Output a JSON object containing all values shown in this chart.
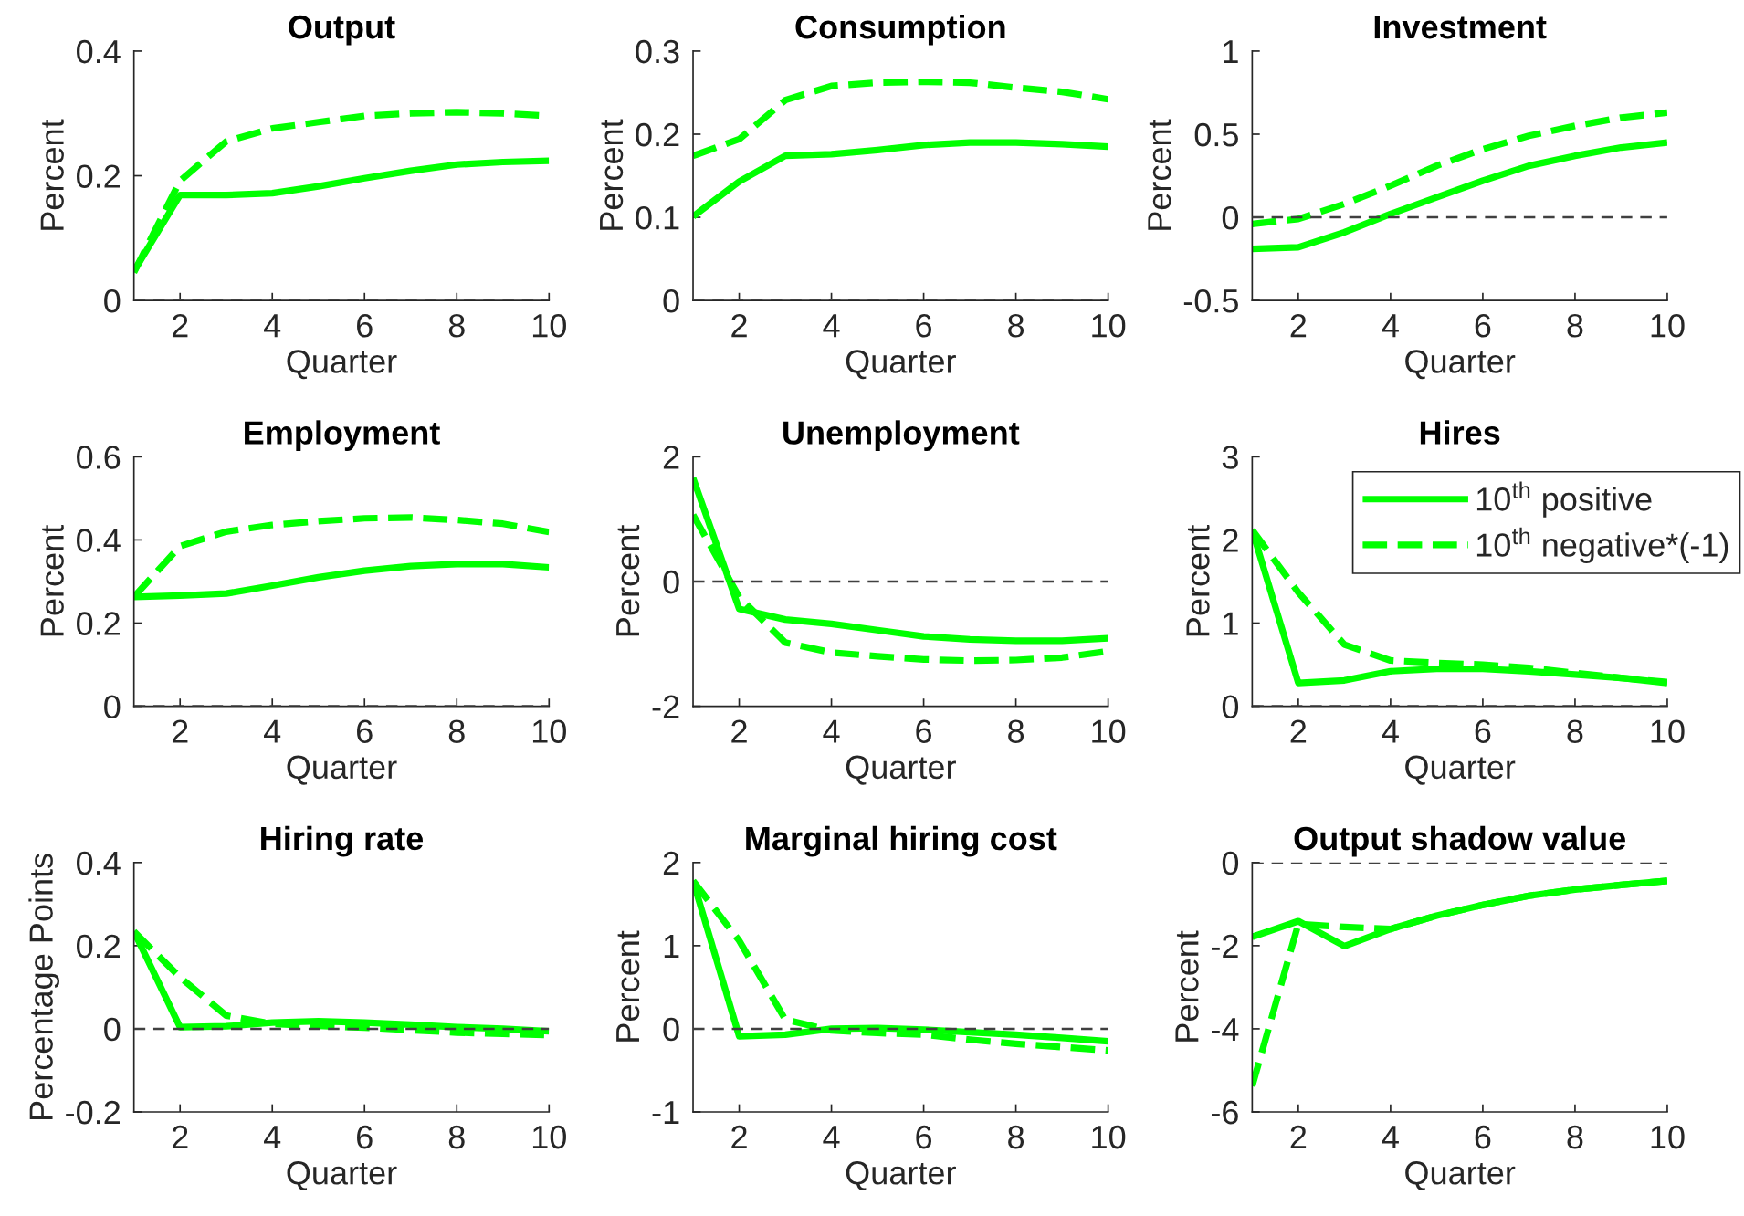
{
  "chart_data": [
    {
      "type": "line",
      "title": "Output",
      "xlabel": "Quarter",
      "ylabel": "Percent",
      "x": [
        1,
        2,
        3,
        4,
        5,
        6,
        7,
        8,
        9,
        10
      ],
      "xlim": [
        1,
        10
      ],
      "xticks": [
        2,
        4,
        6,
        8,
        10
      ],
      "ylim": [
        0,
        0.4
      ],
      "yticks": [
        0,
        0.2,
        0.4
      ],
      "ref_lines": [
        {
          "axis": "y",
          "value": 0,
          "color": "#404040",
          "line_style": "dashed"
        }
      ],
      "series": [
        {
          "color": "#00ff00",
          "line_style": "solid",
          "values": [
            0.047,
            0.169,
            0.169,
            0.172,
            0.183,
            0.196,
            0.208,
            0.218,
            0.222,
            0.224
          ]
        },
        {
          "color": "#00ff00",
          "line_style": "dashed",
          "values": [
            0.045,
            0.192,
            0.255,
            0.276,
            0.286,
            0.296,
            0.3,
            0.302,
            0.3,
            0.296
          ]
        }
      ]
    },
    {
      "type": "line",
      "title": "Consumption",
      "xlabel": "Quarter",
      "ylabel": "Percent",
      "x": [
        1,
        2,
        3,
        4,
        5,
        6,
        7,
        8,
        9,
        10
      ],
      "xlim": [
        1,
        10
      ],
      "xticks": [
        2,
        4,
        6,
        8,
        10
      ],
      "ylim": [
        0,
        0.3
      ],
      "yticks": [
        0,
        0.1,
        0.2,
        0.3
      ],
      "ref_lines": [
        {
          "axis": "y",
          "value": 0,
          "color": "#404040",
          "line_style": "dashed"
        }
      ],
      "series": [
        {
          "color": "#00ff00",
          "line_style": "solid",
          "values": [
            0.101,
            0.143,
            0.174,
            0.176,
            0.181,
            0.187,
            0.19,
            0.19,
            0.188,
            0.185
          ]
        },
        {
          "color": "#00ff00",
          "line_style": "dashed",
          "values": [
            0.174,
            0.194,
            0.241,
            0.258,
            0.262,
            0.263,
            0.262,
            0.256,
            0.251,
            0.242
          ]
        }
      ]
    },
    {
      "type": "line",
      "title": "Investment",
      "xlabel": "Quarter",
      "ylabel": "Percent",
      "x": [
        1,
        2,
        3,
        4,
        5,
        6,
        7,
        8,
        9,
        10
      ],
      "xlim": [
        1,
        10
      ],
      "xticks": [
        2,
        4,
        6,
        8,
        10
      ],
      "ylim": [
        -0.5,
        1
      ],
      "yticks": [
        -0.5,
        0,
        0.5,
        1
      ],
      "ref_lines": [
        {
          "axis": "y",
          "value": 0,
          "color": "#404040",
          "line_style": "dashed"
        }
      ],
      "series": [
        {
          "color": "#00ff00",
          "line_style": "solid",
          "values": [
            -0.19,
            -0.18,
            -0.09,
            0.02,
            0.12,
            0.22,
            0.31,
            0.37,
            0.42,
            0.45
          ]
        },
        {
          "color": "#00ff00",
          "line_style": "dashed",
          "values": [
            -0.04,
            -0.01,
            0.08,
            0.19,
            0.31,
            0.41,
            0.49,
            0.55,
            0.6,
            0.63
          ]
        }
      ]
    },
    {
      "type": "line",
      "title": "Employment",
      "xlabel": "Quarter",
      "ylabel": "Percent",
      "x": [
        1,
        2,
        3,
        4,
        5,
        6,
        7,
        8,
        9,
        10
      ],
      "xlim": [
        1,
        10
      ],
      "xticks": [
        2,
        4,
        6,
        8,
        10
      ],
      "ylim": [
        0,
        0.6
      ],
      "yticks": [
        0,
        0.2,
        0.4,
        0.6
      ],
      "ref_lines": [
        {
          "axis": "y",
          "value": 0,
          "color": "#404040",
          "line_style": "dashed"
        }
      ],
      "series": [
        {
          "color": "#00ff00",
          "line_style": "solid",
          "values": [
            0.263,
            0.266,
            0.271,
            0.29,
            0.31,
            0.326,
            0.337,
            0.342,
            0.342,
            0.334
          ]
        },
        {
          "color": "#00ff00",
          "line_style": "dashed",
          "values": [
            0.263,
            0.385,
            0.42,
            0.436,
            0.445,
            0.452,
            0.454,
            0.448,
            0.439,
            0.419
          ]
        }
      ]
    },
    {
      "type": "line",
      "title": "Unemployment",
      "xlabel": "Quarter",
      "ylabel": "Percent",
      "x": [
        1,
        2,
        3,
        4,
        5,
        6,
        7,
        8,
        9,
        10
      ],
      "xlim": [
        1,
        10
      ],
      "xticks": [
        2,
        4,
        6,
        8,
        10
      ],
      "ylim": [
        -2,
        2
      ],
      "yticks": [
        -2,
        0,
        2
      ],
      "ref_lines": [
        {
          "axis": "y",
          "value": 0,
          "color": "#404040",
          "line_style": "dashed"
        }
      ],
      "series": [
        {
          "color": "#00ff00",
          "line_style": "solid",
          "values": [
            1.66,
            -0.44,
            -0.61,
            -0.68,
            -0.78,
            -0.88,
            -0.93,
            -0.95,
            -0.95,
            -0.91
          ]
        },
        {
          "color": "#00ff00",
          "line_style": "dashed",
          "values": [
            1.07,
            -0.25,
            -0.98,
            -1.14,
            -1.2,
            -1.25,
            -1.27,
            -1.26,
            -1.22,
            -1.12
          ]
        }
      ]
    },
    {
      "type": "line",
      "title": "Hires",
      "xlabel": "Quarter",
      "ylabel": "Percent",
      "x": [
        1,
        2,
        3,
        4,
        5,
        6,
        7,
        8,
        9,
        10
      ],
      "xlim": [
        1,
        10
      ],
      "xticks": [
        2,
        4,
        6,
        8,
        10
      ],
      "ylim": [
        0,
        3
      ],
      "yticks": [
        0,
        1,
        2,
        3
      ],
      "ref_lines": [
        {
          "axis": "y",
          "value": 0,
          "color": "#404040",
          "line_style": "dashed"
        }
      ],
      "legend": "top right",
      "series": [
        {
          "name": "10$^{th}$ positive",
          "color": "#00ff00",
          "line_style": "solid",
          "values": [
            2.12,
            0.28,
            0.31,
            0.42,
            0.45,
            0.45,
            0.42,
            0.38,
            0.34,
            0.28
          ]
        },
        {
          "name": "10$^{th}$ negative*(-1)",
          "color": "#00ff00",
          "line_style": "dashed",
          "values": [
            2.12,
            1.37,
            0.74,
            0.55,
            0.52,
            0.5,
            0.46,
            0.4,
            0.34,
            0.29
          ]
        }
      ]
    },
    {
      "type": "line",
      "title": "Hiring rate",
      "xlabel": "Quarter",
      "ylabel": "Percentage Points",
      "x": [
        1,
        2,
        3,
        4,
        5,
        6,
        7,
        8,
        9,
        10
      ],
      "xlim": [
        1,
        10
      ],
      "xticks": [
        2,
        4,
        6,
        8,
        10
      ],
      "ylim": [
        -0.2,
        0.4
      ],
      "yticks": [
        -0.2,
        0,
        0.2,
        0.4
      ],
      "ref_lines": [
        {
          "axis": "y",
          "value": 0,
          "color": "#404040",
          "line_style": "dashed"
        }
      ],
      "series": [
        {
          "color": "#00ff00",
          "line_style": "solid",
          "values": [
            0.234,
            0.004,
            0.006,
            0.015,
            0.018,
            0.015,
            0.01,
            0.004,
            0.0,
            -0.006
          ]
        },
        {
          "color": "#00ff00",
          "line_style": "dashed",
          "values": [
            0.234,
            0.124,
            0.032,
            0.012,
            0.007,
            0.003,
            -0.003,
            -0.009,
            -0.012,
            -0.015
          ]
        }
      ]
    },
    {
      "type": "line",
      "title": "Marginal hiring cost",
      "xlabel": "Quarter",
      "ylabel": "Percent",
      "x": [
        1,
        2,
        3,
        4,
        5,
        6,
        7,
        8,
        9,
        10
      ],
      "xlim": [
        1,
        10
      ],
      "xticks": [
        2,
        4,
        6,
        8,
        10
      ],
      "ylim": [
        -1,
        2
      ],
      "yticks": [
        -1,
        0,
        1,
        2
      ],
      "ref_lines": [
        {
          "axis": "y",
          "value": 0,
          "color": "#404040",
          "line_style": "dashed"
        }
      ],
      "series": [
        {
          "color": "#00ff00",
          "line_style": "solid",
          "values": [
            1.78,
            -0.09,
            -0.07,
            0.0,
            0.01,
            -0.01,
            -0.04,
            -0.07,
            -0.11,
            -0.15
          ]
        },
        {
          "color": "#00ff00",
          "line_style": "dashed",
          "values": [
            1.78,
            1.06,
            0.11,
            -0.02,
            -0.05,
            -0.07,
            -0.13,
            -0.18,
            -0.22,
            -0.26
          ]
        }
      ]
    },
    {
      "type": "line",
      "title": "Output shadow value",
      "xlabel": "Quarter",
      "ylabel": "Percent",
      "x": [
        1,
        2,
        3,
        4,
        5,
        6,
        7,
        8,
        9,
        10
      ],
      "xlim": [
        1,
        10
      ],
      "xticks": [
        2,
        4,
        6,
        8,
        10
      ],
      "ylim": [
        -6,
        0
      ],
      "yticks": [
        -6,
        -4,
        -2,
        0
      ],
      "ref_lines": [
        {
          "axis": "y",
          "value": 0,
          "color": "#404040",
          "line_style": "dashed"
        }
      ],
      "series": [
        {
          "color": "#00ff00",
          "line_style": "solid",
          "values": [
            -1.79,
            -1.41,
            -2.01,
            -1.6,
            -1.28,
            -1.02,
            -0.8,
            -0.65,
            -0.54,
            -0.44
          ]
        },
        {
          "color": "#00ff00",
          "line_style": "dashed",
          "values": [
            -5.38,
            -1.48,
            -1.55,
            -1.6,
            -1.28,
            -1.02,
            -0.8,
            -0.65,
            -0.54,
            -0.44
          ]
        }
      ]
    }
  ]
}
